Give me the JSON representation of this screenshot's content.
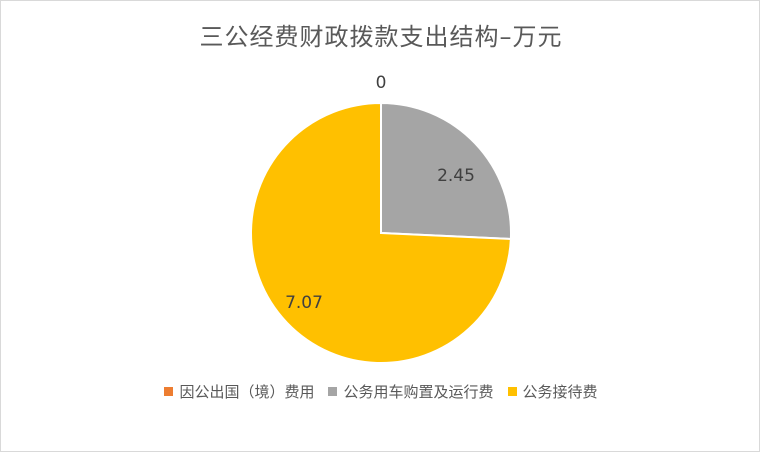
{
  "chart_data": {
    "type": "pie",
    "title": "三公经费财政拨款支出结构–万元",
    "categories": [
      "因公出国（境）费用",
      "公务用车购置及运行费",
      "公务接待费"
    ],
    "values": [
      0,
      2.45,
      7.07
    ],
    "data_labels": [
      "0",
      "2.45",
      "7.07"
    ],
    "colors": [
      "#ED7D31",
      "#A5A5A5",
      "#FFC000"
    ],
    "legend_position": "bottom"
  }
}
